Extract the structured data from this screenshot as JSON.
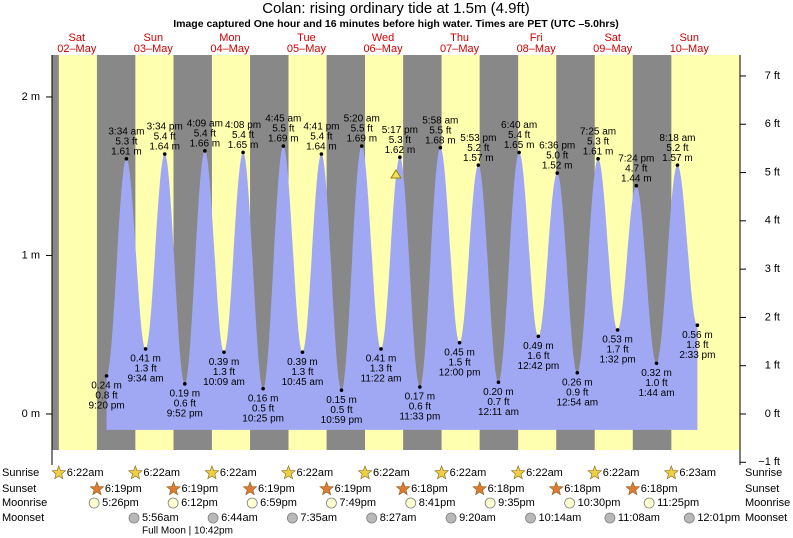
{
  "chart_data": {
    "type": "tide",
    "title": "Colan: rising  ordinary tide at 1.5m (4.9ft)",
    "subtitle": "Image captured One hour and 16 minutes before high water. Times are PET (UTC –5.0hrs)",
    "ylim": [
      -0.32,
      2.3
    ],
    "yticks": [
      {
        "value": 0,
        "label": "0 m"
      },
      {
        "value": 1,
        "label": "1 m"
      },
      {
        "value": 2,
        "label": "2 m"
      }
    ],
    "y2lim": [
      -1.05,
      7.55
    ],
    "y2ticks": [
      {
        "value": -1,
        "label": "−1 ft"
      },
      {
        "value": 0,
        "label": "0 ft"
      },
      {
        "value": 1,
        "label": "1 ft"
      },
      {
        "value": 2,
        "label": "2 ft"
      },
      {
        "value": 3,
        "label": "3 ft"
      },
      {
        "value": 4,
        "label": "4 ft"
      },
      {
        "value": 5,
        "label": "5 ft"
      },
      {
        "value": 6,
        "label": "6 ft"
      },
      {
        "value": 7,
        "label": "7 ft"
      }
    ],
    "color": "#a0a8f4",
    "rows": [
      "Sunrise",
      "Sunset",
      "Moonrise",
      "Moonset"
    ],
    "days": [
      {
        "dow": "Sat",
        "date": "02–May",
        "sunrise": "6:22am",
        "sunset": "6:19pm",
        "moonrise": "5:26pm",
        "tides": [
          {
            "time": "9:20 pm",
            "value": 0.24,
            "value_label": "0.24 m",
            "ft_label": "0.8 ft"
          }
        ]
      },
      {
        "dow": "Sun",
        "date": "03–May",
        "sunrise": "6:22am",
        "sunset": "6:19pm",
        "moonrise": "6:12pm",
        "moonset": "5:56am",
        "moon_phase": "Full Moon | 10:42pm",
        "tides": [
          {
            "time": "3:34 am",
            "value": 1.61,
            "value_label": "1.61 m",
            "ft_label": "5.3 ft"
          },
          {
            "time": "9:34 am",
            "value": 0.41,
            "value_label": "0.41 m",
            "ft_label": "1.3 ft"
          },
          {
            "time": "3:34 pm",
            "value": 1.64,
            "value_label": "1.64 m",
            "ft_label": "5.4 ft"
          },
          {
            "time": "9:52 pm",
            "value": 0.19,
            "value_label": "0.19 m",
            "ft_label": "0.6 ft"
          }
        ]
      },
      {
        "dow": "Mon",
        "date": "04–May",
        "sunrise": "6:22am",
        "sunset": "6:19pm",
        "moonrise": "6:59pm",
        "moonset": "6:44am",
        "tides": [
          {
            "time": "4:09 am",
            "value": 1.66,
            "value_label": "1.66 m",
            "ft_label": "5.4 ft"
          },
          {
            "time": "10:09 am",
            "value": 0.39,
            "value_label": "0.39 m",
            "ft_label": "1.3 ft"
          },
          {
            "time": "4:08 pm",
            "value": 1.65,
            "value_label": "1.65 m",
            "ft_label": "5.4 ft"
          },
          {
            "time": "10:25 pm",
            "value": 0.16,
            "value_label": "0.16 m",
            "ft_label": "0.5 ft"
          }
        ]
      },
      {
        "dow": "Tue",
        "date": "05–May",
        "sunrise": "6:22am",
        "sunset": "6:19pm",
        "moonrise": "7:49pm",
        "moonset": "7:35am",
        "tides": [
          {
            "time": "4:45 am",
            "value": 1.69,
            "value_label": "1.69 m",
            "ft_label": "5.5 ft"
          },
          {
            "time": "10:45 am",
            "value": 0.39,
            "value_label": "0.39 m",
            "ft_label": "1.3 ft"
          },
          {
            "time": "4:41 pm",
            "value": 1.64,
            "value_label": "1.64 m",
            "ft_label": "5.4 ft"
          },
          {
            "time": "10:59 pm",
            "value": 0.15,
            "value_label": "0.15 m",
            "ft_label": "0.5 ft"
          }
        ]
      },
      {
        "dow": "Wed",
        "date": "06–May",
        "sunrise": "6:22am",
        "sunset": "6:18pm",
        "moonrise": "8:41pm",
        "moonset": "8:27am",
        "tides": [
          {
            "time": "5:20 am",
            "value": 1.69,
            "value_label": "1.69 m",
            "ft_label": "5.5 ft"
          },
          {
            "time": "11:22 am",
            "value": 0.41,
            "value_label": "0.41 m",
            "ft_label": "1.3 ft"
          },
          {
            "time": "5:17 pm",
            "value": 1.62,
            "value_label": "1.62 m",
            "ft_label": "5.3 ft"
          },
          {
            "time": "11:33 pm",
            "value": 0.17,
            "value_label": "0.17 m",
            "ft_label": "0.6 ft"
          }
        ]
      },
      {
        "dow": "Thu",
        "date": "07–May",
        "sunrise": "6:22am",
        "sunset": "6:18pm",
        "moonrise": "9:35pm",
        "moonset": "9:20am",
        "tides": [
          {
            "time": "5:58 am",
            "value": 1.68,
            "value_label": "1.68 m",
            "ft_label": "5.5 ft"
          },
          {
            "time": "12:00 pm",
            "value": 0.45,
            "value_label": "0.45 m",
            "ft_label": "1.5 ft"
          },
          {
            "time": "5:53 pm",
            "value": 1.57,
            "value_label": "1.57 m",
            "ft_label": "5.2 ft"
          }
        ]
      },
      {
        "dow": "Fri",
        "date": "08–May",
        "sunrise": "6:22am",
        "sunset": "6:18pm",
        "moonrise": "10:30pm",
        "moonset": "10:14am",
        "tides": [
          {
            "time": "12:11 am",
            "value": 0.2,
            "value_label": "0.20 m",
            "ft_label": "0.7 ft"
          },
          {
            "time": "6:40 am",
            "value": 1.65,
            "value_label": "1.65 m",
            "ft_label": "5.4 ft"
          },
          {
            "time": "12:42 pm",
            "value": 0.49,
            "value_label": "0.49 m",
            "ft_label": "1.6 ft"
          },
          {
            "time": "6:36 pm",
            "value": 1.52,
            "value_label": "1.52 m",
            "ft_label": "5.0 ft"
          }
        ]
      },
      {
        "dow": "Sat",
        "date": "09–May",
        "sunrise": "6:22am",
        "sunset": "6:18pm",
        "moonrise": "11:25pm",
        "moonset": "11:08am",
        "tides": [
          {
            "time": "12:54 am",
            "value": 0.26,
            "value_label": "0.26 m",
            "ft_label": "0.9 ft"
          },
          {
            "time": "7:25 am",
            "value": 1.61,
            "value_label": "1.61 m",
            "ft_label": "5.3 ft"
          },
          {
            "time": "1:32 pm",
            "value": 0.53,
            "value_label": "0.53 m",
            "ft_label": "1.7 ft"
          },
          {
            "time": "7:24 pm",
            "value": 1.44,
            "value_label": "1.44 m",
            "ft_label": "4.7 ft"
          }
        ]
      },
      {
        "dow": "Sun",
        "date": "10–May",
        "sunrise": "6:23am",
        "moonset": "12:01pm",
        "tides": [
          {
            "time": "1:44 am",
            "value": 0.32,
            "value_label": "0.32 m",
            "ft_label": "1.0 ft"
          },
          {
            "time": "8:18 am",
            "value": 1.57,
            "value_label": "1.57 m",
            "ft_label": "5.2 ft"
          },
          {
            "time": "2:33 pm",
            "value": 0.56,
            "value_label": "0.56 m",
            "ft_label": "1.8 ft"
          }
        ]
      }
    ]
  }
}
